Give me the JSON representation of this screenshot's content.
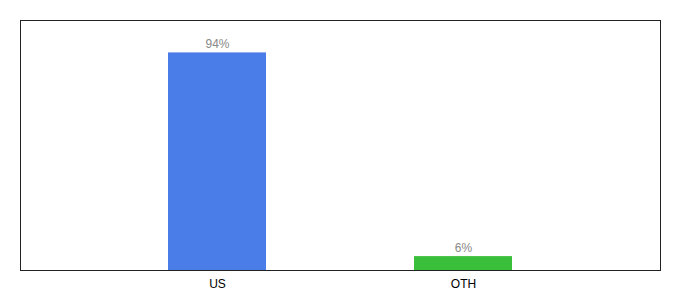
{
  "chart_data": {
    "type": "bar",
    "categories": [
      "US",
      "OTH"
    ],
    "values": [
      94,
      6
    ],
    "value_labels": [
      "94%",
      "6%"
    ],
    "data_labels": true,
    "colors": [
      "#4a7de8",
      "#3abf3a"
    ],
    "ylim": [
      0,
      108
    ],
    "grid": false,
    "tick_labels": "x"
  }
}
